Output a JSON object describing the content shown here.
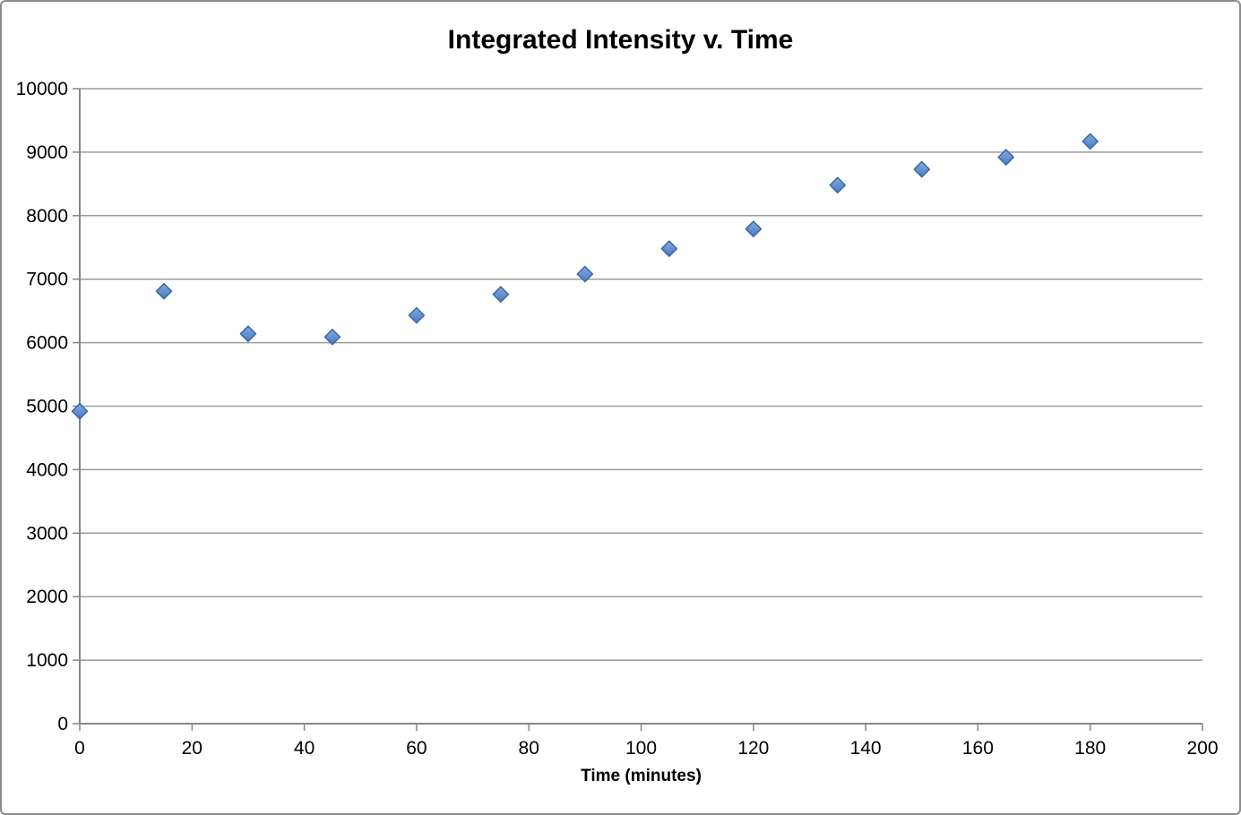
{
  "chart_data": {
    "type": "scatter",
    "title": "Integrated Intensity v. Time",
    "xlabel": "Time (minutes)",
    "ylabel": "",
    "xlim": [
      0,
      200
    ],
    "ylim": [
      0,
      10000
    ],
    "x_tick_step": 20,
    "y_tick_step": 1000,
    "grid": "horizontal-only",
    "legend": "none",
    "marker": "diamond",
    "series": [
      {
        "x": [
          0,
          15,
          30,
          45,
          60,
          75,
          90,
          105,
          120,
          135,
          150,
          165,
          180
        ],
        "y": [
          4920,
          6810,
          6140,
          6090,
          6430,
          6760,
          7080,
          7480,
          7790,
          8480,
          8730,
          8920,
          9170
        ]
      }
    ],
    "colors": {
      "marker_top": "#83aae1",
      "marker_bottom": "#4a7bc0",
      "marker_edge": "#3a68a8",
      "gridline": "#9b9b9b",
      "axis": "#868686",
      "text": "#000000",
      "frame_border": "#8c8c8c",
      "background": "#ffffff"
    }
  }
}
